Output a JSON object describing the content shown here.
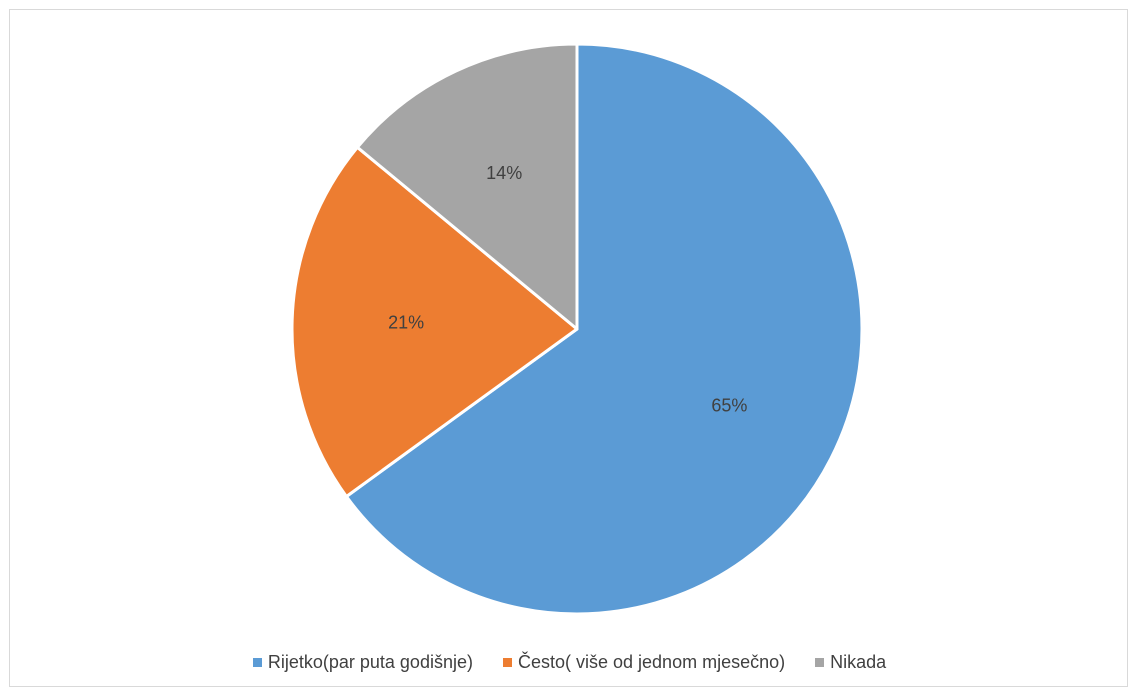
{
  "chart_data": {
    "type": "pie",
    "title": "",
    "legend_position": "bottom",
    "slices": [
      {
        "label": "Rijetko(par puta godišnje)",
        "value": 65,
        "display": "65%",
        "color": "#5b9bd5"
      },
      {
        "label": "Često( više od jednom mjesečno)",
        "value": 21,
        "display": "21%",
        "color": "#ed7d31"
      },
      {
        "label": "Nikada",
        "value": 14,
        "display": "14%",
        "color": "#a5a5a5"
      }
    ]
  }
}
